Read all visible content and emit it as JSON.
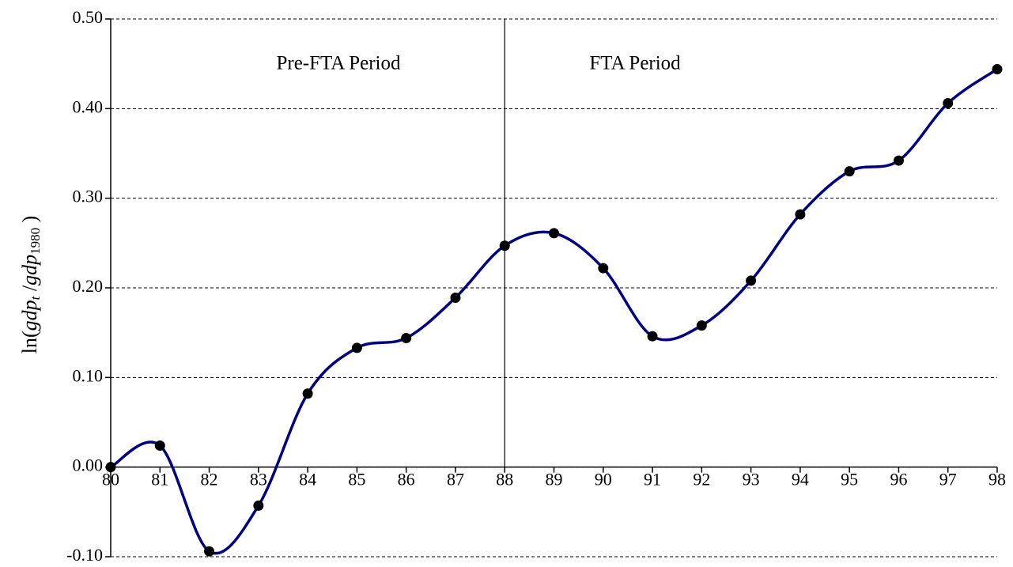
{
  "chart_data": {
    "type": "line",
    "ylabel": [
      "ln(",
      "gdp",
      "t",
      " /",
      "gdp",
      "1980",
      " )"
    ],
    "annotations": [
      "Pre-FTA Period",
      "FTA Period"
    ],
    "divider": "88",
    "categories": [
      "80",
      "81",
      "82",
      "83",
      "84",
      "85",
      "86",
      "87",
      "88",
      "89",
      "90",
      "91",
      "92",
      "93",
      "94",
      "95",
      "96",
      "97",
      "98"
    ],
    "series": [
      {
        "color": "#000080",
        "marker_color": "#000000",
        "values": [
          0.0,
          0.024,
          -0.094,
          -0.043,
          0.082,
          0.133,
          0.144,
          0.189,
          0.247,
          0.261,
          0.222,
          0.146,
          0.158,
          0.208,
          0.282,
          0.33,
          0.342,
          0.406,
          0.444
        ]
      }
    ],
    "ylim": [
      -0.1,
      0.5
    ],
    "yticks": [
      {
        "value": -0.1,
        "label": "-0.10"
      },
      {
        "value": 0.0,
        "label": "0.00"
      },
      {
        "value": 0.1,
        "label": "0.10"
      },
      {
        "value": 0.2,
        "label": "0.20"
      },
      {
        "value": 0.3,
        "label": "0.30"
      },
      {
        "value": 0.4,
        "label": "0.40"
      },
      {
        "value": 0.5,
        "label": "0.50"
      }
    ],
    "grid": true,
    "smooth": true
  }
}
